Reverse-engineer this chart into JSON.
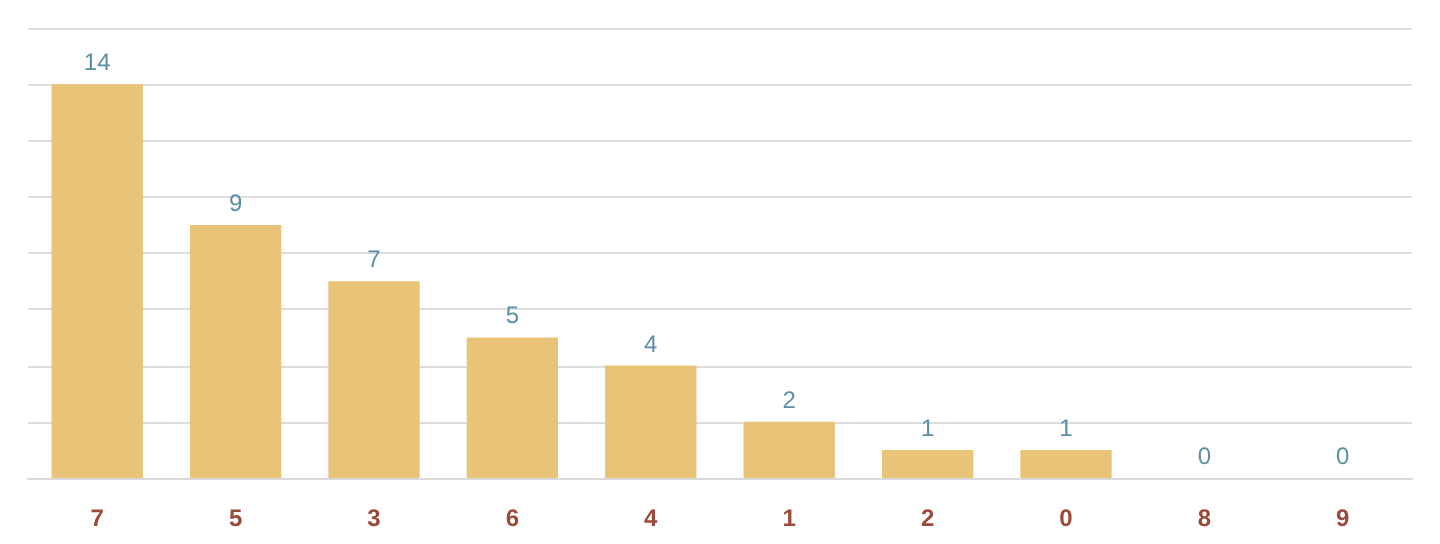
{
  "chart_data": {
    "type": "bar",
    "categories": [
      "7",
      "5",
      "3",
      "6",
      "4",
      "1",
      "2",
      "0",
      "8",
      "9"
    ],
    "series": [
      {
        "color": "#e8c378",
        "values": [
          14,
          9,
          7,
          5,
          4,
          2,
          1,
          1,
          0,
          0
        ]
      }
    ],
    "ylim": [
      0,
      16
    ],
    "yticks": [
      {
        "value": 0,
        "label": null
      },
      {
        "value": 2,
        "label": null
      },
      {
        "value": 4,
        "label": null
      },
      {
        "value": 6,
        "label": null
      },
      {
        "value": 8,
        "label": null
      },
      {
        "value": 10,
        "label": null
      },
      {
        "value": 12,
        "label": null
      },
      {
        "value": 14,
        "label": null
      },
      {
        "value": 16,
        "label": null
      }
    ],
    "grid": "y",
    "data_labels": true,
    "tick_labels": "x"
  }
}
